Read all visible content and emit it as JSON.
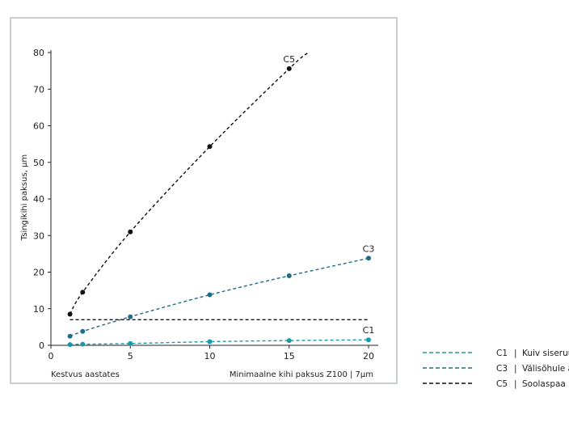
{
  "chart_data": {
    "type": "line",
    "ylabel": "Tsingikihi paksus, µm",
    "xlabel_left": "Kestvus aastates",
    "xlabel_right": "Minimaalne kihi paksus Z100 | 7µm",
    "xlim": [
      0,
      20
    ],
    "ylim": [
      0,
      80
    ],
    "x_ticks": [
      0,
      5,
      10,
      15,
      20
    ],
    "y_ticks": [
      0,
      10,
      20,
      30,
      40,
      50,
      60,
      70,
      80
    ],
    "grid": false,
    "reference_line": {
      "y": 7,
      "x_range": [
        1.2,
        20
      ]
    },
    "series": [
      {
        "name": "C1",
        "color": "#1a9aa6",
        "points": [
          [
            1.2,
            0.2
          ],
          [
            2,
            0.3
          ],
          [
            5,
            0.5
          ],
          [
            10,
            1.0
          ],
          [
            15,
            1.3
          ],
          [
            20,
            1.5
          ]
        ],
        "extend_to": null
      },
      {
        "name": "C3",
        "color": "#1e6d86",
        "points": [
          [
            1.2,
            2.5
          ],
          [
            2,
            3.8
          ],
          [
            5,
            7.8
          ],
          [
            10,
            13.8
          ],
          [
            15,
            19.0
          ],
          [
            20,
            23.8
          ]
        ],
        "extend_to": null
      },
      {
        "name": "C5",
        "color": "#111111",
        "points": [
          [
            1.2,
            8.5
          ],
          [
            2,
            14.5
          ],
          [
            5,
            31.0
          ],
          [
            10,
            54.3
          ],
          [
            15,
            75.6
          ]
        ],
        "extend_to": [
          16.2,
          80
        ]
      }
    ],
    "legend": {
      "placement": "bottom-right",
      "entries": [
        {
          "code": "C1",
          "separator": "|",
          "text": "Kuiv siseruu",
          "color": "#1a9aa6"
        },
        {
          "code": "C3",
          "separator": "|",
          "text": "Välisõhule a",
          "color": "#1e6d86"
        },
        {
          "code": "C5",
          "separator": "|",
          "text": "Soolaspaa",
          "color": "#111111"
        }
      ]
    }
  }
}
